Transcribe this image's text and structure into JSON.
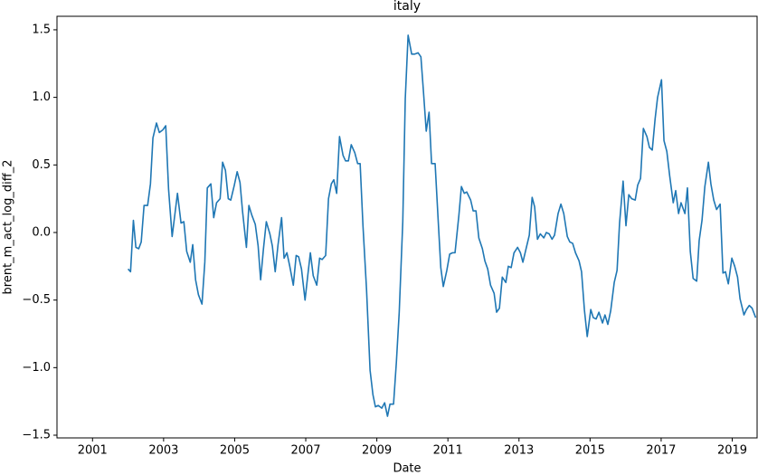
{
  "chart_data": {
    "type": "line",
    "title": "italy",
    "x_label": "Date",
    "y_label": "brent_m_act_log_diff_2",
    "color": "#1f77b4",
    "x": [
      2002.0,
      2002.07,
      2002.15,
      2002.22,
      2002.3,
      2002.37,
      2002.45,
      2002.55,
      2002.63,
      2002.7,
      2002.8,
      2002.88,
      2002.98,
      2003.06,
      2003.14,
      2003.24,
      2003.32,
      2003.39,
      2003.49,
      2003.57,
      2003.65,
      2003.75,
      2003.82,
      2003.9,
      2003.98,
      2004.08,
      2004.16,
      2004.23,
      2004.33,
      2004.41,
      2004.49,
      2004.59,
      2004.66,
      2004.74,
      2004.82,
      2004.89,
      2004.99,
      2005.07,
      2005.15,
      2005.22,
      2005.33,
      2005.4,
      2005.48,
      2005.58,
      2005.66,
      2005.73,
      2005.81,
      2005.89,
      2005.99,
      2006.06,
      2006.14,
      2006.22,
      2006.32,
      2006.39,
      2006.47,
      2006.55,
      2006.65,
      2006.73,
      2006.8,
      2006.88,
      2006.98,
      2007.06,
      2007.13,
      2007.21,
      2007.31,
      2007.39,
      2007.46,
      2007.56,
      2007.64,
      2007.72,
      2007.79,
      2007.87,
      2007.95,
      2008.05,
      2008.12,
      2008.2,
      2008.28,
      2008.38,
      2008.46,
      2008.53,
      2008.61,
      2008.71,
      2008.81,
      2008.89,
      2008.96,
      2009.04,
      2009.14,
      2009.22,
      2009.3,
      2009.37,
      2009.47,
      2009.55,
      2009.63,
      2009.73,
      2009.8,
      2009.88,
      2009.98,
      2010.06,
      2010.16,
      2010.24,
      2010.31,
      2010.39,
      2010.47,
      2010.54,
      2010.64,
      2010.72,
      2010.8,
      2010.87,
      2010.97,
      2011.05,
      2011.13,
      2011.2,
      2011.31,
      2011.38,
      2011.46,
      2011.53,
      2011.64,
      2011.71,
      2011.79,
      2011.87,
      2011.97,
      2012.04,
      2012.12,
      2012.2,
      2012.3,
      2012.37,
      2012.45,
      2012.53,
      2012.63,
      2012.7,
      2012.78,
      2012.86,
      2012.96,
      2013.04,
      2013.11,
      2013.19,
      2013.29,
      2013.37,
      2013.44,
      2013.52,
      2013.6,
      2013.7,
      2013.77,
      2013.85,
      2013.93,
      2014.0,
      2014.1,
      2014.18,
      2014.26,
      2014.36,
      2014.43,
      2014.51,
      2014.59,
      2014.69,
      2014.76,
      2014.84,
      2014.92,
      2015.02,
      2015.09,
      2015.17,
      2015.25,
      2015.35,
      2015.42,
      2015.5,
      2015.58,
      2015.68,
      2015.76,
      2015.83,
      2015.93,
      2016.01,
      2016.09,
      2016.17,
      2016.27,
      2016.34,
      2016.42,
      2016.5,
      2016.6,
      2016.67,
      2016.75,
      2016.83,
      2016.9,
      2017.01,
      2017.08,
      2017.16,
      2017.24,
      2017.34,
      2017.41,
      2017.49,
      2017.56,
      2017.67,
      2017.74,
      2017.82,
      2017.9,
      2018.0,
      2018.07,
      2018.15,
      2018.23,
      2018.33,
      2018.4,
      2018.48,
      2018.56,
      2018.66,
      2018.74,
      2018.81,
      2018.89,
      2018.99,
      2019.07,
      2019.15,
      2019.22,
      2019.33,
      2019.4,
      2019.48,
      2019.56,
      2019.66
    ],
    "values": [
      -0.27,
      -0.29,
      0.09,
      -0.11,
      -0.12,
      -0.07,
      0.2,
      0.2,
      0.36,
      0.7,
      0.81,
      0.74,
      0.76,
      0.79,
      0.32,
      -0.03,
      0.14,
      0.29,
      0.07,
      0.08,
      -0.14,
      -0.22,
      -0.09,
      -0.35,
      -0.46,
      -0.53,
      -0.22,
      0.33,
      0.36,
      0.11,
      0.22,
      0.25,
      0.52,
      0.46,
      0.25,
      0.24,
      0.35,
      0.45,
      0.37,
      0.16,
      -0.11,
      0.2,
      0.13,
      0.06,
      -0.1,
      -0.35,
      -0.12,
      0.08,
      -0.01,
      -0.1,
      -0.29,
      -0.09,
      0.11,
      -0.19,
      -0.15,
      -0.25,
      -0.39,
      -0.17,
      -0.18,
      -0.27,
      -0.5,
      -0.31,
      -0.15,
      -0.32,
      -0.39,
      -0.19,
      -0.2,
      -0.17,
      0.25,
      0.36,
      0.39,
      0.29,
      0.71,
      0.57,
      0.53,
      0.53,
      0.65,
      0.59,
      0.51,
      0.51,
      0.05,
      -0.42,
      -1.02,
      -1.2,
      -1.29,
      -1.28,
      -1.3,
      -1.26,
      -1.36,
      -1.27,
      -1.27,
      -0.96,
      -0.59,
      0.08,
      0.99,
      1.46,
      1.32,
      1.32,
      1.33,
      1.3,
      1.05,
      0.75,
      0.89,
      0.51,
      0.51,
      0.12,
      -0.26,
      -0.4,
      -0.28,
      -0.16,
      -0.15,
      -0.15,
      0.13,
      0.34,
      0.29,
      0.3,
      0.24,
      0.16,
      0.16,
      -0.04,
      -0.12,
      -0.21,
      -0.27,
      -0.39,
      -0.45,
      -0.59,
      -0.56,
      -0.33,
      -0.37,
      -0.25,
      -0.26,
      -0.15,
      -0.11,
      -0.15,
      -0.22,
      -0.13,
      -0.02,
      0.26,
      0.19,
      -0.05,
      -0.01,
      -0.04,
      0.0,
      -0.01,
      -0.05,
      -0.02,
      0.14,
      0.21,
      0.14,
      -0.03,
      -0.07,
      -0.08,
      -0.15,
      -0.21,
      -0.29,
      -0.57,
      -0.77,
      -0.57,
      -0.63,
      -0.64,
      -0.59,
      -0.67,
      -0.61,
      -0.68,
      -0.58,
      -0.37,
      -0.28,
      0.07,
      0.38,
      0.05,
      0.28,
      0.25,
      0.24,
      0.35,
      0.4,
      0.77,
      0.71,
      0.63,
      0.61,
      0.84,
      1.0,
      1.13,
      0.68,
      0.6,
      0.42,
      0.22,
      0.31,
      0.14,
      0.22,
      0.14,
      0.33,
      -0.14,
      -0.34,
      -0.36,
      -0.06,
      0.09,
      0.34,
      0.52,
      0.36,
      0.24,
      0.17,
      0.21,
      -0.3,
      -0.29,
      -0.38,
      -0.19,
      -0.25,
      -0.33,
      -0.49,
      -0.61,
      -0.57,
      -0.54,
      -0.56,
      -0.63
    ],
    "xlim": [
      2000,
      2019.7
    ],
    "xticks": [
      2001,
      2003,
      2005,
      2007,
      2009,
      2011,
      2013,
      2015,
      2017,
      2019
    ],
    "ylim": [
      -1.52,
      1.6
    ],
    "yticks": [
      {
        "value": -1.5,
        "label": "−1.5"
      },
      {
        "value": -1,
        "label": "−1.0"
      },
      {
        "value": -0.5,
        "label": "−0.5"
      },
      {
        "value": 0,
        "label": "0.0"
      },
      0.5,
      {
        "value": 1,
        "label": "1.0"
      },
      1.5
    ]
  }
}
